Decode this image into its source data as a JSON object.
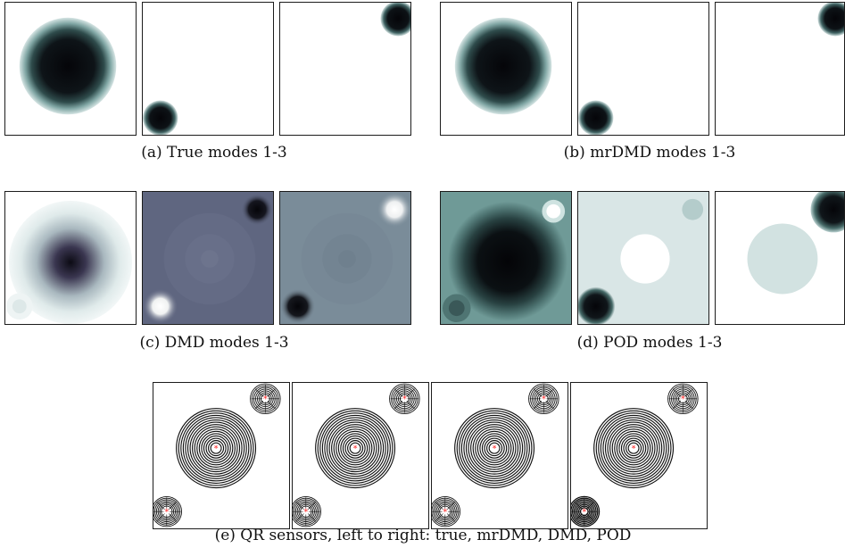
{
  "figure": {
    "captions": {
      "a": "(a) True modes 1-3",
      "b": "(b) mrDMD modes 1-3",
      "c": "(c) DMD modes 1-3",
      "d": "(d) POD modes 1-3",
      "e": "(e) QR sensors, left to right: true, mrDMD, DMD, POD"
    },
    "colors": {
      "dark": "#0b0b12",
      "teal": "#6f9a97",
      "slate": "#5f6680",
      "grey_blue": "#7a8c99",
      "pale": "#d9e6e6",
      "sensor": "#ff2020"
    }
  }
}
